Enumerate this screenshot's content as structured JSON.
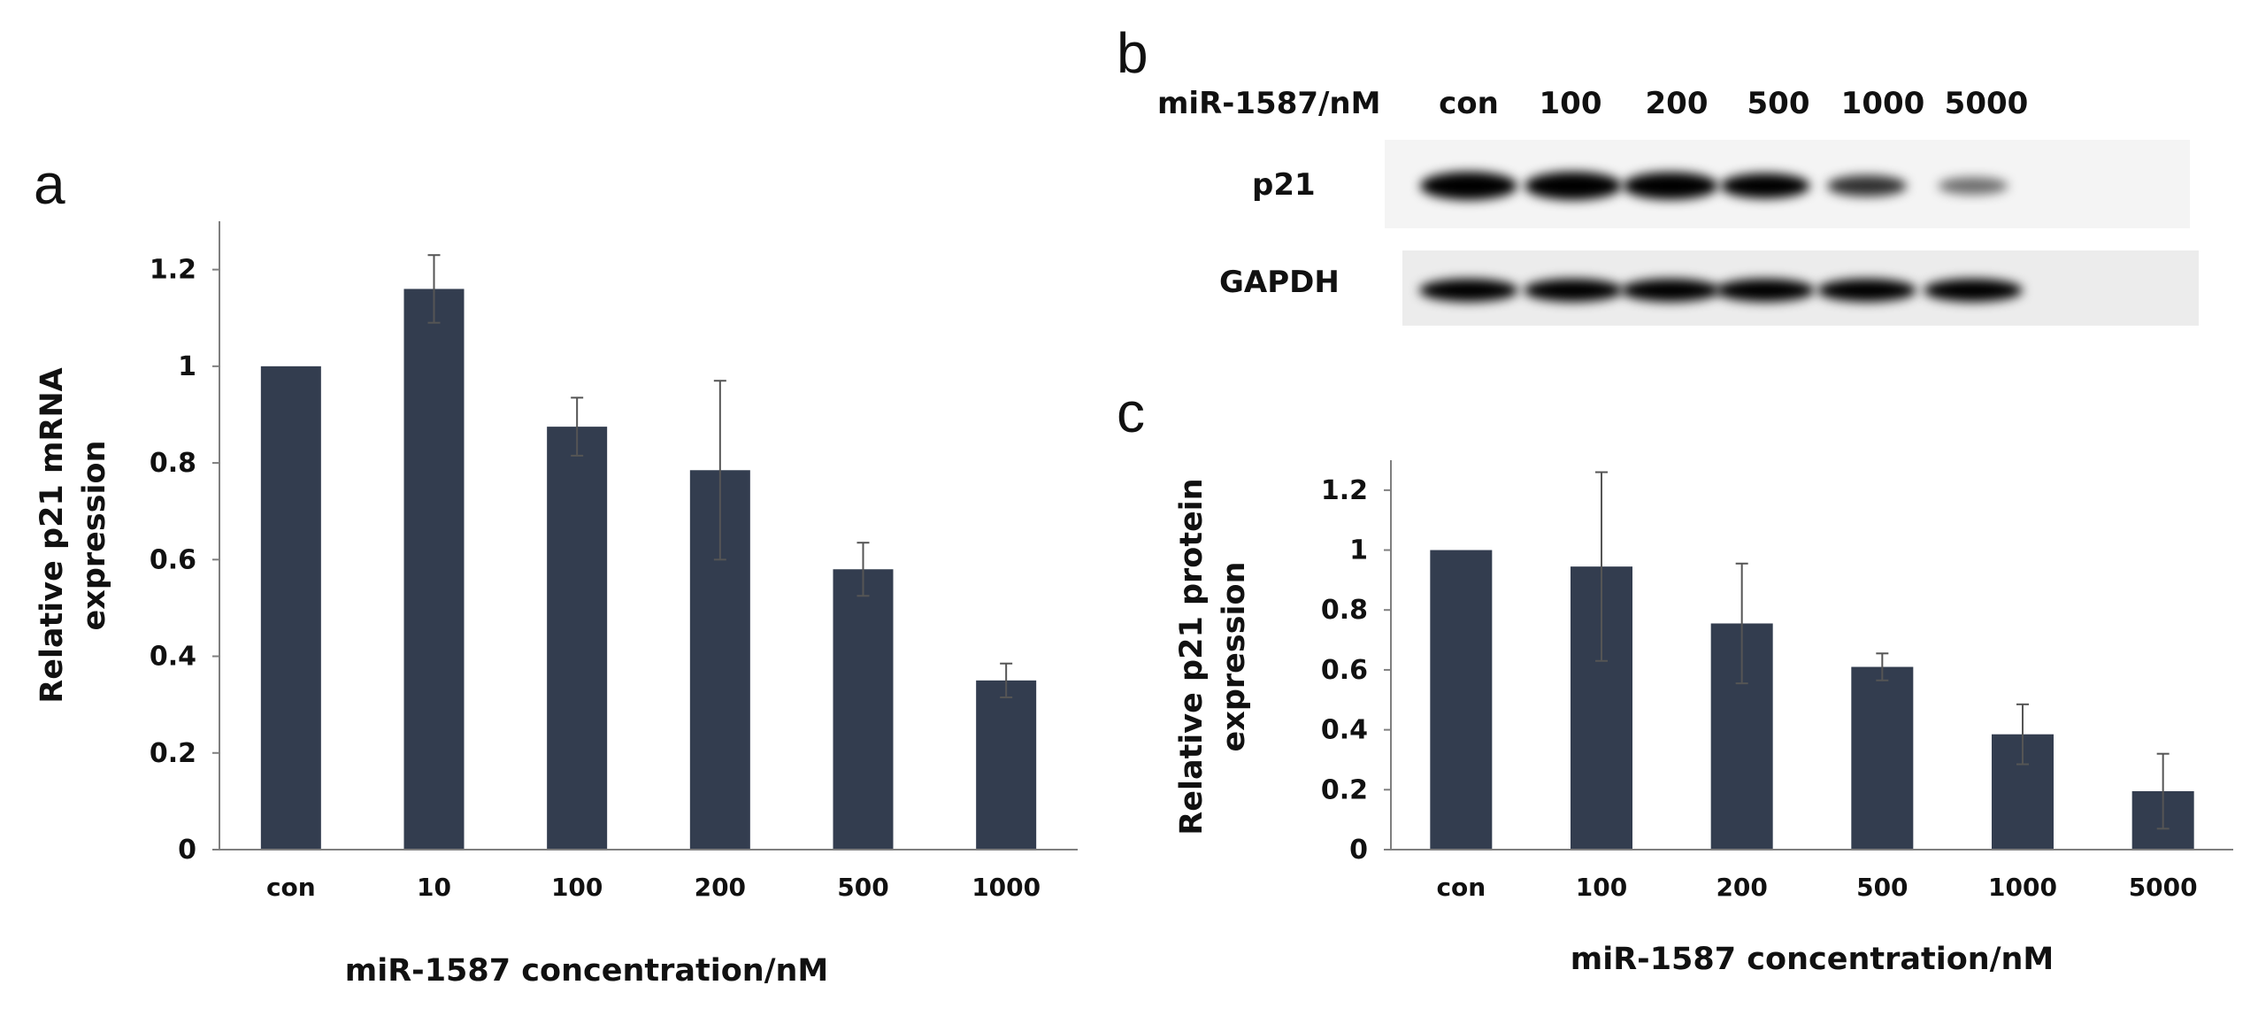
{
  "panels": {
    "a": "a",
    "b": "b",
    "c": "c"
  },
  "colors": {
    "bar": "#333d4f",
    "axis": "#7f7f7f",
    "error": "#555555"
  },
  "blot": {
    "row_header": "miR-1587/nM",
    "lanes": [
      "con",
      "100",
      "200",
      "500",
      "1000",
      "5000"
    ],
    "bands": [
      {
        "label": "p21",
        "intensity": [
          1.0,
          1.0,
          0.95,
          0.8,
          0.55,
          0.3
        ]
      },
      {
        "label": "GAPDH",
        "intensity": [
          1.0,
          1.0,
          1.0,
          1.0,
          1.0,
          1.0
        ]
      }
    ]
  },
  "chart_data": [
    {
      "type": "bar",
      "panel": "a",
      "categories": [
        "con",
        "10",
        "100",
        "200",
        "500",
        "1000"
      ],
      "values": [
        1.0,
        1.16,
        0.875,
        0.785,
        0.58,
        0.35
      ],
      "errors": [
        0.0,
        0.07,
        0.06,
        0.185,
        0.055,
        0.035
      ],
      "yticks": [
        "0",
        "0.2",
        "0.4",
        "0.6",
        "0.8",
        "1",
        "1.2"
      ],
      "ylim": [
        0,
        1.3
      ],
      "xlabel": "miR-1587 concentration/nM",
      "ylabel_lines": [
        "Relative p21 mRNA",
        "expression"
      ]
    },
    {
      "type": "bar",
      "panel": "c",
      "categories": [
        "con",
        "100",
        "200",
        "500",
        "1000",
        "5000"
      ],
      "values": [
        1.0,
        0.945,
        0.755,
        0.61,
        0.385,
        0.195
      ],
      "errors": [
        0.0,
        0.315,
        0.2,
        0.045,
        0.1,
        0.125
      ],
      "yticks": [
        "0",
        "0.2",
        "0.4",
        "0.6",
        "0.8",
        "1",
        "1.2"
      ],
      "ylim": [
        0,
        1.3
      ],
      "xlabel": "miR-1587 concentration/nM",
      "ylabel_lines": [
        "Relative p21 protein",
        "expression"
      ]
    }
  ]
}
